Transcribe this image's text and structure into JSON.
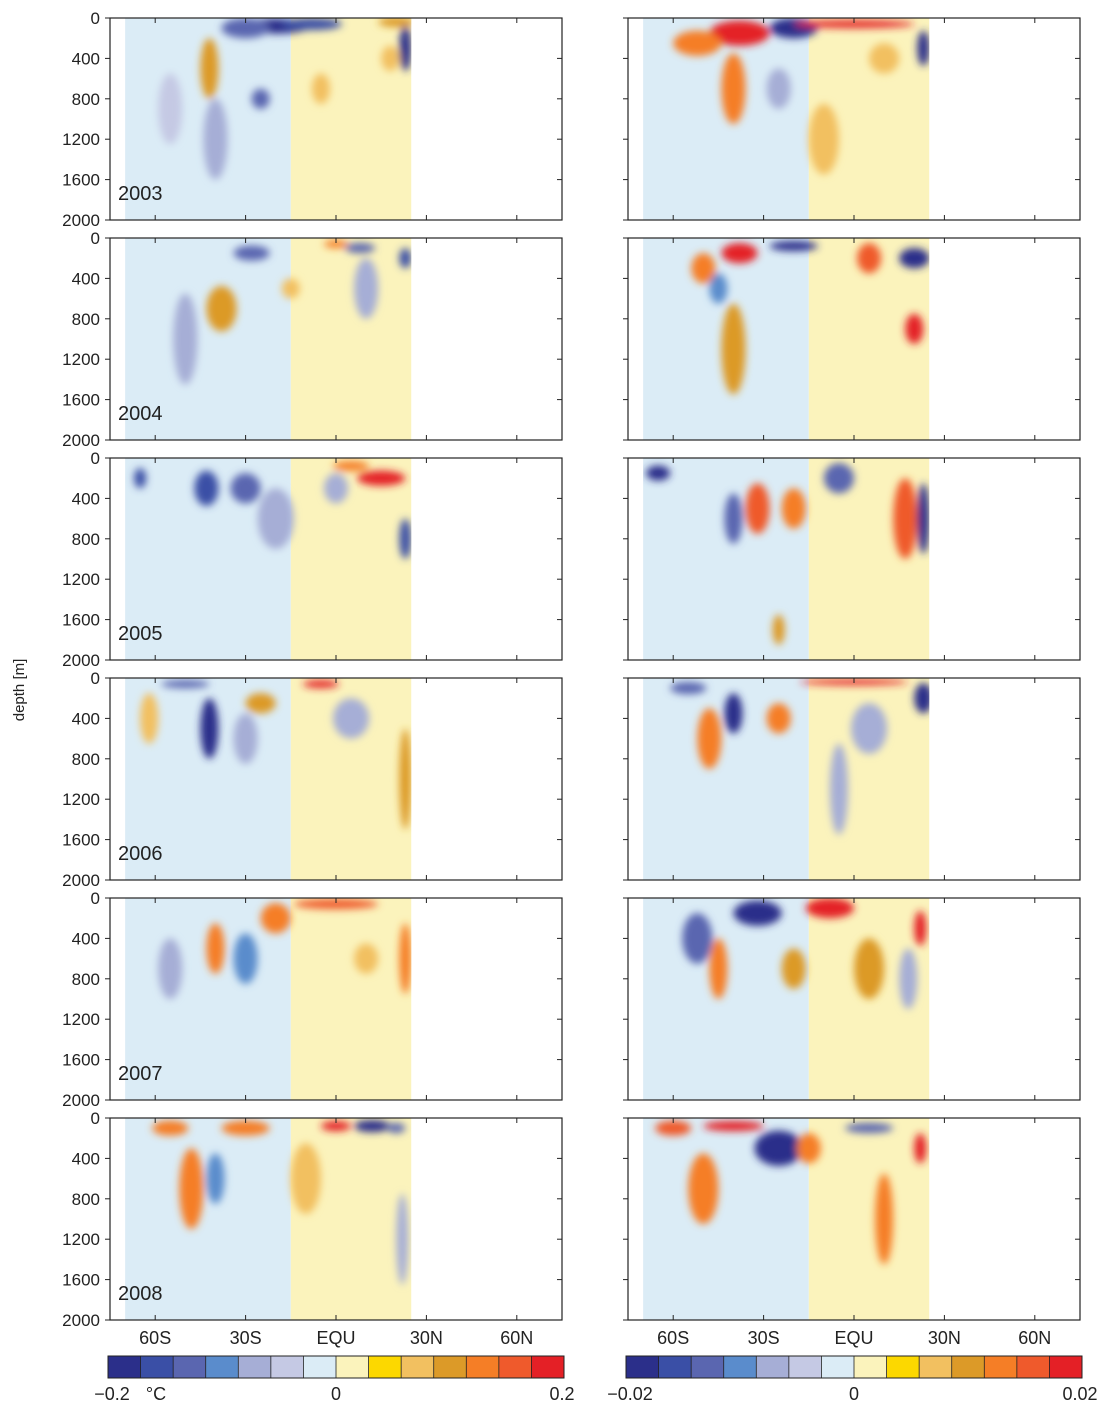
{
  "chart_data": {
    "type": "heatmap",
    "ylabel": "depth [m]",
    "y_ticks": [
      "0",
      "400",
      "800",
      "1200",
      "1600",
      "2000"
    ],
    "ylim": [
      2000,
      0
    ],
    "x_ticks": [
      "60S",
      "30S",
      "EQU",
      "30N",
      "60N"
    ],
    "x_tick_values": [
      -60,
      -30,
      0,
      30,
      60
    ],
    "xlim": [
      -75,
      75
    ],
    "data_extent_lat": [
      -70,
      25
    ],
    "years": [
      "2003",
      "2004",
      "2005",
      "2006",
      "2007",
      "2008"
    ],
    "columns": [
      {
        "colorbar": {
          "min_label": "−0.2",
          "unit": "°C",
          "zero_label": "0",
          "max_label": "0.2",
          "range": [
            -0.2,
            0.2
          ]
        },
        "panels": [
          {
            "year": "2003",
            "features": [
              {
                "lat": -20,
                "depth": 80,
                "value": -0.18,
                "w": 12,
                "h": 150
              },
              {
                "lat": -30,
                "depth": 100,
                "value": -0.12,
                "w": 8,
                "h": 200
              },
              {
                "lat": -8,
                "depth": 60,
                "value": -0.15,
                "w": 10,
                "h": 120
              },
              {
                "lat": 20,
                "depth": 40,
                "value": 0.1,
                "w": 6,
                "h": 100
              },
              {
                "lat": 23,
                "depth": 300,
                "value": -0.2,
                "w": 2,
                "h": 450
              },
              {
                "lat": -42,
                "depth": 500,
                "value": 0.1,
                "w": 3,
                "h": 600
              },
              {
                "lat": -25,
                "depth": 800,
                "value": -0.12,
                "w": 3,
                "h": 200
              },
              {
                "lat": -40,
                "depth": 1200,
                "value": -0.06,
                "w": 4,
                "h": 800
              },
              {
                "lat": -55,
                "depth": 900,
                "value": -0.05,
                "w": 4,
                "h": 700
              },
              {
                "lat": 18,
                "depth": 400,
                "value": 0.08,
                "w": 3,
                "h": 250
              },
              {
                "lat": -5,
                "depth": 700,
                "value": 0.07,
                "w": 3,
                "h": 300
              }
            ]
          },
          {
            "year": "2004",
            "features": [
              {
                "lat": -28,
                "depth": 150,
                "value": -0.12,
                "w": 6,
                "h": 150
              },
              {
                "lat": -38,
                "depth": 700,
                "value": 0.11,
                "w": 5,
                "h": 450
              },
              {
                "lat": 0,
                "depth": 60,
                "value": 0.14,
                "w": 4,
                "h": 80
              },
              {
                "lat": 8,
                "depth": 100,
                "value": -0.14,
                "w": 5,
                "h": 100
              },
              {
                "lat": 23,
                "depth": 200,
                "value": -0.15,
                "w": 2,
                "h": 200
              },
              {
                "lat": -15,
                "depth": 500,
                "value": 0.08,
                "w": 3,
                "h": 200
              },
              {
                "lat": -50,
                "depth": 1000,
                "value": -0.06,
                "w": 4,
                "h": 900
              },
              {
                "lat": 10,
                "depth": 500,
                "value": -0.06,
                "w": 4,
                "h": 600
              }
            ]
          },
          {
            "year": "2005",
            "features": [
              {
                "lat": -43,
                "depth": 300,
                "value": -0.16,
                "w": 4,
                "h": 350
              },
              {
                "lat": -30,
                "depth": 300,
                "value": -0.12,
                "w": 5,
                "h": 300
              },
              {
                "lat": 15,
                "depth": 200,
                "value": 0.2,
                "w": 8,
                "h": 150
              },
              {
                "lat": 5,
                "depth": 80,
                "value": 0.12,
                "w": 6,
                "h": 100
              },
              {
                "lat": 23,
                "depth": 800,
                "value": -0.16,
                "w": 2,
                "h": 400
              },
              {
                "lat": -65,
                "depth": 200,
                "value": -0.16,
                "w": 2,
                "h": 200
              },
              {
                "lat": -20,
                "depth": 600,
                "value": -0.06,
                "w": 6,
                "h": 600
              },
              {
                "lat": 0,
                "depth": 300,
                "value": -0.08,
                "w": 4,
                "h": 300
              }
            ]
          },
          {
            "year": "2006",
            "features": [
              {
                "lat": -42,
                "depth": 500,
                "value": -0.18,
                "w": 3,
                "h": 600
              },
              {
                "lat": -50,
                "depth": 60,
                "value": -0.14,
                "w": 8,
                "h": 80
              },
              {
                "lat": -25,
                "depth": 250,
                "value": 0.1,
                "w": 5,
                "h": 200
              },
              {
                "lat": -5,
                "depth": 60,
                "value": 0.18,
                "w": 6,
                "h": 80
              },
              {
                "lat": 23,
                "depth": 1000,
                "value": 0.1,
                "w": 2,
                "h": 1000
              },
              {
                "lat": -62,
                "depth": 400,
                "value": 0.07,
                "w": 3,
                "h": 500
              },
              {
                "lat": -30,
                "depth": 600,
                "value": -0.08,
                "w": 4,
                "h": 500
              },
              {
                "lat": 5,
                "depth": 400,
                "value": -0.07,
                "w": 6,
                "h": 400
              }
            ]
          },
          {
            "year": "2007",
            "features": [
              {
                "lat": 0,
                "depth": 60,
                "value": 0.15,
                "w": 14,
                "h": 100
              },
              {
                "lat": -40,
                "depth": 500,
                "value": 0.14,
                "w": 3,
                "h": 500
              },
              {
                "lat": -30,
                "depth": 600,
                "value": -0.1,
                "w": 4,
                "h": 500
              },
              {
                "lat": -20,
                "depth": 200,
                "value": 0.12,
                "w": 5,
                "h": 300
              },
              {
                "lat": 23,
                "depth": 600,
                "value": 0.12,
                "w": 2,
                "h": 700
              },
              {
                "lat": 10,
                "depth": 600,
                "value": 0.07,
                "w": 4,
                "h": 300
              },
              {
                "lat": -55,
                "depth": 700,
                "value": -0.06,
                "w": 4,
                "h": 600
              }
            ]
          },
          {
            "year": "2008",
            "features": [
              {
                "lat": -55,
                "depth": 100,
                "value": 0.14,
                "w": 6,
                "h": 150
              },
              {
                "lat": -30,
                "depth": 100,
                "value": 0.12,
                "w": 8,
                "h": 150
              },
              {
                "lat": 0,
                "depth": 80,
                "value": 0.2,
                "w": 5,
                "h": 100
              },
              {
                "lat": 12,
                "depth": 80,
                "value": -0.2,
                "w": 6,
                "h": 120
              },
              {
                "lat": 20,
                "depth": 100,
                "value": -0.14,
                "w": 3,
                "h": 100
              },
              {
                "lat": -40,
                "depth": 600,
                "value": -0.1,
                "w": 3,
                "h": 500
              },
              {
                "lat": -48,
                "depth": 700,
                "value": 0.12,
                "w": 4,
                "h": 800
              },
              {
                "lat": -10,
                "depth": 600,
                "value": 0.08,
                "w": 5,
                "h": 700
              },
              {
                "lat": 22,
                "depth": 1200,
                "value": -0.08,
                "w": 2,
                "h": 900
              }
            ]
          }
        ]
      },
      {
        "colorbar": {
          "min_label": "−0.02",
          "unit": "",
          "zero_label": "0",
          "max_label": "0.02",
          "range": [
            -0.02,
            0.02
          ]
        },
        "panels": [
          {
            "year": "2003",
            "features": [
              {
                "lat": -38,
                "depth": 150,
                "value": 0.02,
                "w": 10,
                "h": 250
              },
              {
                "lat": -20,
                "depth": 100,
                "value": -0.02,
                "w": 8,
                "h": 200
              },
              {
                "lat": 0,
                "depth": 60,
                "value": 0.02,
                "w": 20,
                "h": 80
              },
              {
                "lat": -52,
                "depth": 250,
                "value": 0.014,
                "w": 8,
                "h": 250
              },
              {
                "lat": -40,
                "depth": 700,
                "value": 0.012,
                "w": 4,
                "h": 700
              },
              {
                "lat": 23,
                "depth": 300,
                "value": -0.018,
                "w": 2,
                "h": 350
              },
              {
                "lat": -25,
                "depth": 700,
                "value": -0.008,
                "w": 4,
                "h": 400
              },
              {
                "lat": 10,
                "depth": 400,
                "value": 0.008,
                "w": 5,
                "h": 300
              },
              {
                "lat": -10,
                "depth": 1200,
                "value": 0.006,
                "w": 5,
                "h": 700
              }
            ]
          },
          {
            "year": "2004",
            "features": [
              {
                "lat": -38,
                "depth": 150,
                "value": 0.02,
                "w": 6,
                "h": 200
              },
              {
                "lat": -20,
                "depth": 80,
                "value": -0.02,
                "w": 8,
                "h": 100
              },
              {
                "lat": 20,
                "depth": 200,
                "value": -0.018,
                "w": 5,
                "h": 200
              },
              {
                "lat": 20,
                "depth": 900,
                "value": 0.018,
                "w": 3,
                "h": 300
              },
              {
                "lat": -50,
                "depth": 300,
                "value": 0.012,
                "w": 4,
                "h": 300
              },
              {
                "lat": -40,
                "depth": 1100,
                "value": 0.01,
                "w": 4,
                "h": 900
              },
              {
                "lat": -45,
                "depth": 500,
                "value": -0.01,
                "w": 3,
                "h": 300
              },
              {
                "lat": 5,
                "depth": 200,
                "value": 0.016,
                "w": 4,
                "h": 300
              }
            ]
          },
          {
            "year": "2005",
            "features": [
              {
                "lat": -65,
                "depth": 150,
                "value": -0.02,
                "w": 4,
                "h": 150
              },
              {
                "lat": -40,
                "depth": 600,
                "value": -0.012,
                "w": 3,
                "h": 500
              },
              {
                "lat": -32,
                "depth": 500,
                "value": 0.016,
                "w": 4,
                "h": 500
              },
              {
                "lat": 17,
                "depth": 600,
                "value": 0.016,
                "w": 4,
                "h": 800
              },
              {
                "lat": 23,
                "depth": 600,
                "value": -0.018,
                "w": 2,
                "h": 700
              },
              {
                "lat": -20,
                "depth": 500,
                "value": 0.012,
                "w": 4,
                "h": 400
              },
              {
                "lat": -5,
                "depth": 200,
                "value": -0.012,
                "w": 5,
                "h": 300
              },
              {
                "lat": -25,
                "depth": 1700,
                "value": 0.01,
                "w": 2,
                "h": 300
              }
            ]
          },
          {
            "year": "2006",
            "features": [
              {
                "lat": 0,
                "depth": 40,
                "value": 0.02,
                "w": 18,
                "h": 60
              },
              {
                "lat": -40,
                "depth": 350,
                "value": -0.018,
                "w": 3,
                "h": 400
              },
              {
                "lat": 23,
                "depth": 200,
                "value": -0.02,
                "w": 3,
                "h": 300
              },
              {
                "lat": -55,
                "depth": 100,
                "value": -0.014,
                "w": 6,
                "h": 120
              },
              {
                "lat": -25,
                "depth": 400,
                "value": 0.014,
                "w": 4,
                "h": 300
              },
              {
                "lat": -48,
                "depth": 600,
                "value": 0.012,
                "w": 4,
                "h": 600
              },
              {
                "lat": 5,
                "depth": 500,
                "value": -0.008,
                "w": 6,
                "h": 500
              },
              {
                "lat": -5,
                "depth": 1100,
                "value": -0.008,
                "w": 3,
                "h": 900
              }
            ]
          },
          {
            "year": "2007",
            "features": [
              {
                "lat": -32,
                "depth": 150,
                "value": -0.02,
                "w": 8,
                "h": 250
              },
              {
                "lat": -8,
                "depth": 100,
                "value": 0.02,
                "w": 8,
                "h": 200
              },
              {
                "lat": 22,
                "depth": 300,
                "value": 0.018,
                "w": 2,
                "h": 350
              },
              {
                "lat": -52,
                "depth": 400,
                "value": -0.012,
                "w": 5,
                "h": 500
              },
              {
                "lat": -45,
                "depth": 700,
                "value": 0.012,
                "w": 3,
                "h": 600
              },
              {
                "lat": -20,
                "depth": 700,
                "value": 0.01,
                "w": 4,
                "h": 400
              },
              {
                "lat": 5,
                "depth": 700,
                "value": 0.01,
                "w": 5,
                "h": 600
              },
              {
                "lat": 18,
                "depth": 800,
                "value": -0.008,
                "w": 3,
                "h": 600
              }
            ]
          },
          {
            "year": "2008",
            "features": [
              {
                "lat": -25,
                "depth": 300,
                "value": -0.02,
                "w": 8,
                "h": 350
              },
              {
                "lat": -60,
                "depth": 100,
                "value": 0.016,
                "w": 6,
                "h": 150
              },
              {
                "lat": -40,
                "depth": 80,
                "value": 0.02,
                "w": 10,
                "h": 100
              },
              {
                "lat": 22,
                "depth": 300,
                "value": 0.02,
                "w": 2,
                "h": 300
              },
              {
                "lat": 10,
                "depth": 1000,
                "value": 0.012,
                "w": 3,
                "h": 900
              },
              {
                "lat": -50,
                "depth": 700,
                "value": 0.012,
                "w": 5,
                "h": 700
              },
              {
                "lat": -15,
                "depth": 300,
                "value": 0.014,
                "w": 4,
                "h": 300
              },
              {
                "lat": 5,
                "depth": 100,
                "value": -0.014,
                "w": 8,
                "h": 100
              }
            ]
          }
        ]
      }
    ],
    "colorbar_colors": [
      "#2b2f8a",
      "#3a4fa6",
      "#5a66b0",
      "#5a8ccc",
      "#a6aed6",
      "#c5c9e4",
      "#dbecf6",
      "#fbf3bc",
      "#fcd800",
      "#f2c060",
      "#dc9a28",
      "#f57e26",
      "#ef5a2c",
      "#e42026"
    ]
  }
}
